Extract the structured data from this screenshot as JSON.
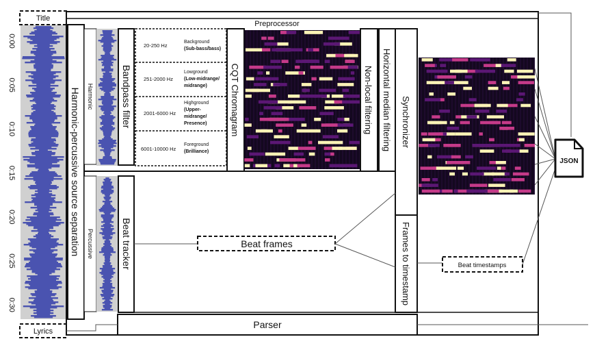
{
  "title_box": "Title",
  "lyrics_box": "Lyrics",
  "preprocessor": "Preprocessor",
  "hpss": "Harmonic-percussive source separation",
  "harmonic": "Harmonic",
  "percussive": "Percussive",
  "bandpass": "Bandpass filter",
  "bands": [
    {
      "range": "20-250 Hz",
      "name": "Background",
      "detail": [
        "(Sub-bass/bass)"
      ]
    },
    {
      "range": "251-2000 Hz",
      "name": "Lowground",
      "detail": [
        "(Low-midrange/",
        "midrange)"
      ]
    },
    {
      "range": "2001-6000 Hz",
      "name": "Highground",
      "detail": [
        "(Upper-",
        "midrange/",
        "Presence)"
      ]
    },
    {
      "range": "6001-10000 Hz",
      "name": "Foreground",
      "detail": [
        "(Brilliance)"
      ]
    }
  ],
  "cqt": "CQT Chromagram",
  "nonlocal": "Non-local filtering",
  "horizontal_median": "Horizontal median filtering",
  "synchronizer": "Synchronizer",
  "beat_tracker": "Beat tracker",
  "beat_frames": "Beat frames",
  "frames_to_timestamp": "Frames to timestamp",
  "beat_timestamps": "Beat timestamps",
  "parser": "Parser",
  "json": "JSON",
  "time_ticks": [
    "0:00",
    "0:05",
    "0:10",
    "0:15",
    "0:20",
    "0:25",
    "0:30"
  ],
  "colors": {
    "waveform": "#4a53b0",
    "waveform_bg": "#d0d0d0",
    "chroma_bg": "#12061c",
    "chroma_hot": "#fbf3b6",
    "chroma_mid": "#c53a89",
    "chroma_low": "#5b1774"
  }
}
